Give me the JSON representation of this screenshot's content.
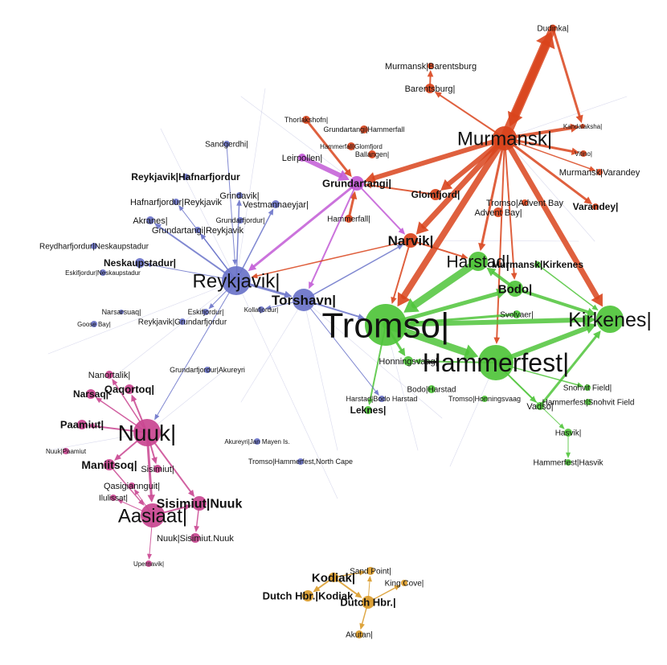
{
  "colors": {
    "red": "#d9441c",
    "green": "#4fc43a",
    "blue": "#6a73c9",
    "magenta": "#c94590",
    "orange": "#d99a28",
    "purple": "#c25ad6",
    "text": "#111111"
  },
  "nodes": [
    {
      "id": "dudinka",
      "label": "Dudinka|",
      "c": "red"
    },
    {
      "id": "murmansk_barentsburg",
      "label": "Murmansk|Barentsburg",
      "c": "red"
    },
    {
      "id": "barentsburg",
      "label": "Barentsburg|",
      "c": "red"
    },
    {
      "id": "murmansk",
      "label": "Murmansk|",
      "c": "red"
    },
    {
      "id": "kandalaksha",
      "label": "Kandalaksha|",
      "c": "red"
    },
    {
      "id": "vitino",
      "label": "Vitino|",
      "c": "red"
    },
    {
      "id": "murmansk_varandey",
      "label": "Murmansk|Varandey",
      "c": "red"
    },
    {
      "id": "varandey",
      "label": "Varandey|",
      "c": "red"
    },
    {
      "id": "thorlakshofn",
      "label": "Thorlakshofn|",
      "c": "red"
    },
    {
      "id": "grundartangi_hammerfall",
      "label": "Grundartangi|Hammerfall",
      "c": "red"
    },
    {
      "id": "hammerfall_glomfjord",
      "label": "Hammerfall|Glomfjord",
      "c": "red"
    },
    {
      "id": "ballangen",
      "label": "Ballangen|",
      "c": "red"
    },
    {
      "id": "glomfjord",
      "label": "Glomfjord|",
      "c": "red"
    },
    {
      "id": "hammerfall",
      "label": "Hammerfall|",
      "c": "red"
    },
    {
      "id": "narvik",
      "label": "Narvik|",
      "c": "red"
    },
    {
      "id": "advent_bay",
      "label": "Advent Bay|",
      "c": "red"
    },
    {
      "id": "tromso_advent_bay",
      "label": "Tromso|Advent Bay",
      "c": "red"
    },
    {
      "id": "leirpollen",
      "label": "Leirpollen|",
      "c": "purple"
    },
    {
      "id": "grundartangi",
      "label": "Grundartangi|",
      "c": "purple"
    },
    {
      "id": "harstad",
      "label": "Harstad|",
      "c": "green"
    },
    {
      "id": "murmansk_kirkenes",
      "label": "Murmansk|Kirkenes",
      "c": "green"
    },
    {
      "id": "bodo",
      "label": "Bodo|",
      "c": "green"
    },
    {
      "id": "svolvaer",
      "label": "Svolvaer|",
      "c": "green"
    },
    {
      "id": "kirkenes",
      "label": "Kirkenes|",
      "c": "green"
    },
    {
      "id": "tromso",
      "label": "Tromso|",
      "c": "green"
    },
    {
      "id": "hammerfest",
      "label": "Hammerfest|",
      "c": "green"
    },
    {
      "id": "honningsvaag",
      "label": "Honningsvaag|",
      "c": "green"
    },
    {
      "id": "bodo_harstad",
      "label": "Bodo|Harstad",
      "c": "green"
    },
    {
      "id": "tromso_honningsvaag",
      "label": "Tromso|Honningsvaag",
      "c": "green"
    },
    {
      "id": "vadso",
      "label": "Vadso|",
      "c": "green"
    },
    {
      "id": "leknes",
      "label": "Leknes|",
      "c": "green"
    },
    {
      "id": "snohvit_field",
      "label": "Snohvit Field|",
      "c": "green"
    },
    {
      "id": "hammerfest_snohvit",
      "label": "Hammerfest|Snohvit Field",
      "c": "green"
    },
    {
      "id": "hasvik",
      "label": "Hasvik|",
      "c": "green"
    },
    {
      "id": "hammerfest_hasvik",
      "label": "Hammerfest|Hasvik",
      "c": "green"
    },
    {
      "id": "reykjavik",
      "label": "Reykjavik|",
      "c": "blue"
    },
    {
      "id": "torshavn",
      "label": "Torshavn|",
      "c": "blue"
    },
    {
      "id": "sandgerdhi",
      "label": "Sandgerdhi|",
      "c": "blue"
    },
    {
      "id": "reykjavik_hafnarfjordur",
      "label": "Reykjavik|Hafnarfjordur",
      "c": "blue"
    },
    {
      "id": "hafnarfjordur_reykjavik",
      "label": "Hafnarfjordur|Reykjavik",
      "c": "blue"
    },
    {
      "id": "grindavik",
      "label": "Grindavik|",
      "c": "blue"
    },
    {
      "id": "vestmannaeyjar",
      "label": "Vestmannaeyjar|",
      "c": "blue"
    },
    {
      "id": "akranes",
      "label": "Akranes|",
      "c": "blue"
    },
    {
      "id": "grundartangi_reykjavik",
      "label": "Grundartangi|Reykjavik",
      "c": "blue"
    },
    {
      "id": "grundarfjordur",
      "label": "Grundarfjordur|",
      "c": "blue"
    },
    {
      "id": "reydharfjordur_neskaupstadur",
      "label": "Reydharfjordur|Neskaupstadur",
      "c": "blue"
    },
    {
      "id": "neskaupstadur",
      "label": "Neskaupstadur|",
      "c": "blue"
    },
    {
      "id": "eskifjordur_neskaupstadur",
      "label": "Eskifjordur|Neskaupstadur",
      "c": "blue"
    },
    {
      "id": "eskifjordur",
      "label": "Eskifjordur|",
      "c": "blue"
    },
    {
      "id": "narsarsuaq",
      "label": "Narsarsuaq|",
      "c": "blue"
    },
    {
      "id": "kollafjordur",
      "label": "Kollafjordur|",
      "c": "blue"
    },
    {
      "id": "goose_bay",
      "label": "Goose Bay|",
      "c": "blue"
    },
    {
      "id": "reykjavik_grundarfjordur",
      "label": "Reykjavik|Grundarfjordur",
      "c": "blue"
    },
    {
      "id": "grundarfjordur_akureyri",
      "label": "Grundarfjordur|Akureyri",
      "c": "blue"
    },
    {
      "id": "akureyri_jan_mayen",
      "label": "Akureyri|Jan Mayen Is.",
      "c": "blue"
    },
    {
      "id": "tromso_hammerfest_north_cape",
      "label": "Tromso|Hammerfest,North Cape",
      "c": "blue"
    },
    {
      "id": "harstad_bodo_harstad",
      "label": "Harstad|Bodo Harstad",
      "c": "blue"
    },
    {
      "id": "nuuk",
      "label": "Nuuk|",
      "c": "magenta"
    },
    {
      "id": "nanortalik",
      "label": "Nanortalik|",
      "c": "magenta"
    },
    {
      "id": "qaqortoq",
      "label": "Qaqortoq|",
      "c": "magenta"
    },
    {
      "id": "narsaq",
      "label": "Narsaq|",
      "c": "magenta"
    },
    {
      "id": "paamiut",
      "label": "Paamiut|",
      "c": "magenta"
    },
    {
      "id": "nuuk_paamiut",
      "label": "Nuuk|Paamiut",
      "c": "magenta"
    },
    {
      "id": "maniitsoq",
      "label": "Maniitsoq|",
      "c": "magenta"
    },
    {
      "id": "sisimiut",
      "label": "Sisimiut|",
      "c": "magenta"
    },
    {
      "id": "qasigiannguit",
      "label": "Qasigiannguit|",
      "c": "magenta"
    },
    {
      "id": "ilulissat",
      "label": "Ilulissat|",
      "c": "magenta"
    },
    {
      "id": "sisimiut_nuuk",
      "label": "Sisimiut|Nuuk",
      "c": "magenta"
    },
    {
      "id": "aasiaat",
      "label": "Aasiaat|",
      "c": "magenta"
    },
    {
      "id": "nuuk_sisimiut_nuuk",
      "label": "Nuuk|Sisimiut.Nuuk",
      "c": "magenta"
    },
    {
      "id": "upernavik",
      "label": "Upernavik|",
      "c": "magenta"
    },
    {
      "id": "kodiak",
      "label": "Kodiak|",
      "c": "orange"
    },
    {
      "id": "sand_point",
      "label": "Sand Point|",
      "c": "orange"
    },
    {
      "id": "king_cove",
      "label": "King Cove|",
      "c": "orange"
    },
    {
      "id": "dutch_hbr_kodiak",
      "label": "Dutch Hbr.|Kodiak",
      "c": "orange"
    },
    {
      "id": "dutch_hbr",
      "label": "Dutch Hbr.|",
      "c": "orange"
    },
    {
      "id": "akutan",
      "label": "Akutan|",
      "c": "orange"
    }
  ],
  "edges": [
    {
      "s": "murmansk",
      "t": "dudinka",
      "w": 12
    },
    {
      "s": "dudinka",
      "t": "murmansk",
      "w": 9
    },
    {
      "s": "murmansk",
      "t": "tromso",
      "w": 8
    },
    {
      "s": "murmansk",
      "t": "kirkenes",
      "w": 7
    },
    {
      "s": "murmansk",
      "t": "narvik",
      "w": 7
    },
    {
      "s": "murmansk",
      "t": "glomfjord",
      "w": 6
    },
    {
      "s": "murmansk",
      "t": "grundartangi",
      "w": 6
    },
    {
      "s": "murmansk",
      "t": "kandalaksha",
      "w": 4
    },
    {
      "s": "murmansk",
      "t": "vitino",
      "w": 3
    },
    {
      "s": "murmansk",
      "t": "varandey",
      "w": 3
    },
    {
      "s": "murmansk",
      "t": "barentsburg",
      "w": 2
    },
    {
      "s": "murmansk",
      "t": "harstad",
      "w": 3
    },
    {
      "s": "murmansk",
      "t": "bodo",
      "w": 2
    },
    {
      "s": "murmansk",
      "t": "hammerfest",
      "w": 2
    },
    {
      "s": "murmansk",
      "t": "murmansk_varandey",
      "w": 1.5
    },
    {
      "s": "dudinka",
      "t": "kandalaksha",
      "w": 3
    },
    {
      "s": "barentsburg",
      "t": "murmansk_barentsburg",
      "w": 2
    },
    {
      "s": "hammerfall",
      "t": "grundartangi",
      "w": 3
    },
    {
      "s": "thorlakshofn",
      "t": "grundartangi",
      "w": 3
    },
    {
      "s": "leirpollen",
      "t": "grundartangi",
      "w": 6
    },
    {
      "s": "grundartangi",
      "t": "reykjavik",
      "w": 3
    },
    {
      "s": "grundartangi",
      "t": "torshavn",
      "w": 2
    },
    {
      "s": "grundartangi",
      "t": "narvik",
      "w": 2
    },
    {
      "s": "glomfjord",
      "t": "grundartangi",
      "w": 2
    },
    {
      "s": "narvik",
      "t": "reykjavik",
      "w": 1.5
    },
    {
      "s": "harstad",
      "t": "tromso",
      "w": 9
    },
    {
      "s": "tromso",
      "t": "hammerfest",
      "w": 9
    },
    {
      "s": "tromso",
      "t": "kirkenes",
      "w": 6
    },
    {
      "s": "hammerfest",
      "t": "kirkenes",
      "w": 6
    },
    {
      "s": "tromso",
      "t": "bodo",
      "w": 5
    },
    {
      "s": "bodo",
      "t": "harstad",
      "w": 4
    },
    {
      "s": "bodo",
      "t": "kirkenes",
      "w": 4
    },
    {
      "s": "svolvaer",
      "t": "tromso",
      "w": 3
    },
    {
      "s": "tromso",
      "t": "honningsvaag",
      "w": 3
    },
    {
      "s": "tromso",
      "t": "leknes",
      "w": 2
    },
    {
      "s": "vadso",
      "t": "kirkenes",
      "w": 3
    },
    {
      "s": "hammerfest",
      "t": "vadso",
      "w": 2
    },
    {
      "s": "hammerfest",
      "t": "honningsvaag",
      "w": 2
    },
    {
      "s": "hammerfest",
      "t": "snohvit_field",
      "w": 1.5
    },
    {
      "s": "hammerfest",
      "t": "hasvik",
      "w": 1
    },
    {
      "s": "narvik",
      "t": "tromso",
      "w": 2
    },
    {
      "s": "narvik",
      "t": "harstad",
      "w": 2
    },
    {
      "s": "murmansk_kirkenes",
      "t": "kirkenes",
      "w": 1.5
    },
    {
      "s": "hasvik",
      "t": "hammerfest_hasvik",
      "w": 1
    },
    {
      "s": "reykjavik",
      "t": "torshavn",
      "w": 3
    },
    {
      "s": "reykjavik",
      "t": "akranes",
      "w": 2
    },
    {
      "s": "reykjavik",
      "t": "grindavik",
      "w": 1.5
    },
    {
      "s": "reykjavik",
      "t": "vestmannaeyjar",
      "w": 1.5
    },
    {
      "s": "reykjavik",
      "t": "grundartangi_reykjavik",
      "w": 1.5
    },
    {
      "s": "reykjavik",
      "t": "hafnarfjordur_reykjavik",
      "w": 1
    },
    {
      "s": "reykjavik",
      "t": "eskifjordur",
      "w": 1
    },
    {
      "s": "reykjavik",
      "t": "neskaupstadur",
      "w": 1
    },
    {
      "s": "sandgerdhi",
      "t": "reykjavik",
      "w": 1
    },
    {
      "s": "torshavn",
      "t": "tromso",
      "w": 2
    },
    {
      "s": "torshavn",
      "t": "narvik",
      "w": 1.5
    },
    {
      "s": "torshavn",
      "t": "kollafjordur",
      "w": 1
    },
    {
      "s": "torshavn",
      "t": "harstad_bodo_harstad",
      "w": 1
    },
    {
      "s": "reykjavik",
      "t": "nuuk",
      "w": 1
    },
    {
      "s": "nuuk",
      "t": "aasiaat",
      "w": 3
    },
    {
      "s": "nuuk",
      "t": "sisimiut_nuuk",
      "w": 2
    },
    {
      "s": "nuuk",
      "t": "maniitsoq",
      "w": 2
    },
    {
      "s": "nuuk",
      "t": "paamiut",
      "w": 2
    },
    {
      "s": "nuuk",
      "t": "qaqortoq",
      "w": 2
    },
    {
      "s": "nuuk",
      "t": "narsaq",
      "w": 1.5
    },
    {
      "s": "nuuk",
      "t": "nanortalik",
      "w": 1.5
    },
    {
      "s": "nuuk",
      "t": "sisimiut",
      "w": 2
    },
    {
      "s": "aasiaat",
      "t": "sisimiut_nuuk",
      "w": 2
    },
    {
      "s": "sisimiut_nuuk",
      "t": "nuuk_sisimiut_nuuk",
      "w": 1.5
    },
    {
      "s": "maniitsoq",
      "t": "aasiaat",
      "w": 1.5
    },
    {
      "s": "aasiaat",
      "t": "ilulissat",
      "w": 1
    },
    {
      "s": "aasiaat",
      "t": "qasigiannguit",
      "w": 1
    },
    {
      "s": "aasiaat",
      "t": "upernavik",
      "w": 1
    },
    {
      "s": "kodiak",
      "t": "dutch_hbr_kodiak",
      "w": 2
    },
    {
      "s": "kodiak",
      "t": "dutch_hbr",
      "w": 2
    },
    {
      "s": "kodiak",
      "t": "sand_point",
      "w": 1.5
    },
    {
      "s": "dutch_hbr",
      "t": "king_cove",
      "w": 1.5
    },
    {
      "s": "dutch_hbr",
      "t": "akutan",
      "w": 1.5
    },
    {
      "s": "dutch_hbr",
      "t": "sand_point",
      "w": 1
    }
  ]
}
